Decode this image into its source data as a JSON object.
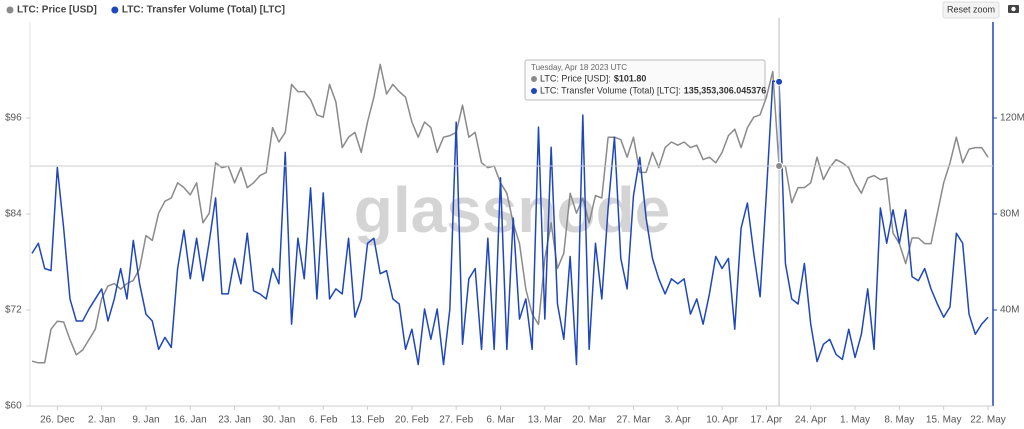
{
  "chart_data": {
    "type": "line",
    "watermark": "glassnode",
    "reset_button": "Reset zoom",
    "x": [
      "2022-12-22",
      "2022-12-23",
      "2022-12-24",
      "2022-12-25",
      "2022-12-26",
      "2022-12-27",
      "2022-12-28",
      "2022-12-29",
      "2022-12-30",
      "2022-12-31",
      "2023-01-01",
      "2023-01-02",
      "2023-01-03",
      "2023-01-04",
      "2023-01-05",
      "2023-01-06",
      "2023-01-07",
      "2023-01-08",
      "2023-01-09",
      "2023-01-10",
      "2023-01-11",
      "2023-01-12",
      "2023-01-13",
      "2023-01-14",
      "2023-01-15",
      "2023-01-16",
      "2023-01-17",
      "2023-01-18",
      "2023-01-19",
      "2023-01-20",
      "2023-01-21",
      "2023-01-22",
      "2023-01-23",
      "2023-01-24",
      "2023-01-25",
      "2023-01-26",
      "2023-01-27",
      "2023-01-28",
      "2023-01-29",
      "2023-01-30",
      "2023-01-31",
      "2023-02-01",
      "2023-02-02",
      "2023-02-03",
      "2023-02-04",
      "2023-02-05",
      "2023-02-06",
      "2023-02-07",
      "2023-02-08",
      "2023-02-09",
      "2023-02-10",
      "2023-02-11",
      "2023-02-12",
      "2023-02-13",
      "2023-02-14",
      "2023-02-15",
      "2023-02-16",
      "2023-02-17",
      "2023-02-18",
      "2023-02-19",
      "2023-02-20",
      "2023-02-21",
      "2023-02-22",
      "2023-02-23",
      "2023-02-24",
      "2023-02-25",
      "2023-02-26",
      "2023-02-27",
      "2023-02-28",
      "2023-03-01",
      "2023-03-02",
      "2023-03-03",
      "2023-03-04",
      "2023-03-05",
      "2023-03-06",
      "2023-03-07",
      "2023-03-08",
      "2023-03-09",
      "2023-03-10",
      "2023-03-11",
      "2023-03-12",
      "2023-03-13",
      "2023-03-14",
      "2023-03-15",
      "2023-03-16",
      "2023-03-17",
      "2023-03-18",
      "2023-03-19",
      "2023-03-20",
      "2023-03-21",
      "2023-03-22",
      "2023-03-23",
      "2023-03-24",
      "2023-03-25",
      "2023-03-26",
      "2023-03-27",
      "2023-03-28",
      "2023-03-29",
      "2023-03-30",
      "2023-03-31",
      "2023-04-01",
      "2023-04-02",
      "2023-04-03",
      "2023-04-04",
      "2023-04-05",
      "2023-04-06",
      "2023-04-07",
      "2023-04-08",
      "2023-04-09",
      "2023-04-10",
      "2023-04-11",
      "2023-04-12",
      "2023-04-13",
      "2023-04-14",
      "2023-04-15",
      "2023-04-16",
      "2023-04-17",
      "2023-04-18",
      "2023-04-19",
      "2023-04-20",
      "2023-04-21",
      "2023-04-22",
      "2023-04-23",
      "2023-04-24",
      "2023-04-25",
      "2023-04-26",
      "2023-04-27",
      "2023-04-28",
      "2023-04-29",
      "2023-04-30",
      "2023-05-01",
      "2023-05-02",
      "2023-05-03",
      "2023-05-04",
      "2023-05-05",
      "2023-05-06",
      "2023-05-07",
      "2023-05-08",
      "2023-05-09",
      "2023-05-10",
      "2023-05-11",
      "2023-05-12",
      "2023-05-13",
      "2023-05-14",
      "2023-05-15",
      "2023-05-16",
      "2023-05-17",
      "2023-05-18",
      "2023-05-19",
      "2023-05-20",
      "2023-05-21",
      "2023-05-22"
    ],
    "series": [
      {
        "name": "LTC: Price [USD]",
        "color": "#8a8a8a",
        "values": [
          65.6,
          65.4,
          65.4,
          69.6,
          70.6,
          70.5,
          68.3,
          66.4,
          67,
          68.3,
          69.6,
          73.4,
          75,
          75.3,
          74.6,
          75.3,
          75.7,
          77.2,
          81.3,
          80.7,
          84.1,
          85.6,
          86,
          87.9,
          87.3,
          86.4,
          87.9,
          82.9,
          84.1,
          90.4,
          89.8,
          90,
          87.9,
          89.8,
          87.3,
          87.9,
          88.8,
          89.2,
          94.8,
          93,
          94.2,
          100.2,
          99.3,
          99.3,
          98.3,
          96.4,
          96.1,
          100.2,
          98,
          92.3,
          93.6,
          94.2,
          91.7,
          95.5,
          98.6,
          102.7,
          99,
          100.2,
          99.3,
          98.6,
          95.5,
          93.6,
          95.5,
          94.8,
          91.7,
          93.6,
          93.8,
          94.2,
          97.6,
          93.6,
          94.2,
          90.4,
          89.8,
          90,
          87.9,
          86.6,
          82.9,
          80.3,
          74.6,
          71.5,
          70.2,
          78.4,
          82.9,
          77.2,
          79.1,
          86.6,
          84.1,
          86,
          82.9,
          86.3,
          86,
          93.6,
          93.6,
          93.3,
          91.1,
          93.6,
          89.2,
          89.2,
          91.7,
          89.8,
          92.3,
          93,
          92.6,
          93,
          92.3,
          92.6,
          90.8,
          91.1,
          90.4,
          91.7,
          93.8,
          94.6,
          92.3,
          94.8,
          96.1,
          96.4,
          98.6,
          101.8,
          90,
          90,
          85.4,
          87.3,
          87.3,
          87.9,
          91.1,
          88.3,
          89.8,
          90.8,
          90.4,
          89.8,
          87.9,
          86.6,
          88.5,
          88.8,
          88.3,
          88.5,
          81.6,
          80.3,
          77.8,
          81,
          81,
          80.3,
          80.3,
          84.1,
          87.9,
          90.4,
          93.6,
          90.4,
          92.1,
          92.3,
          92.3,
          91.1
        ]
      },
      {
        "name": "LTC: Transfer Volume (Total) [LTC]",
        "color": "#1f47bd",
        "axis": "y2",
        "values": [
          63.6,
          67.8,
          57.3,
          56.4,
          99.4,
          74.1,
          44.6,
          35.4,
          35.4,
          40.4,
          44.6,
          48.8,
          35.4,
          44.6,
          57.3,
          44.6,
          69.0,
          50.9,
          38.3,
          35.4,
          23.6,
          28.6,
          24.4,
          57.3,
          73.3,
          53.0,
          69.9,
          52.2,
          68.6,
          86.7,
          46.7,
          46.7,
          61.5,
          50.9,
          72.0,
          48.0,
          46.7,
          44.6,
          57.3,
          50.9,
          105.7,
          34.1,
          69.9,
          53.0,
          90.9,
          44.6,
          88.8,
          44.6,
          48.8,
          46.7,
          69.9,
          37.0,
          44.6,
          67.8,
          69.9,
          55.1,
          56.4,
          44.6,
          42.5,
          23.6,
          32.0,
          17.3,
          40.4,
          27.8,
          40.4,
          17.3,
          40.4,
          118.3,
          25.7,
          53.0,
          57.3,
          23.6,
          69.9,
          23.6,
          95.1,
          23.6,
          78.3,
          36.2,
          44.6,
          23.6,
          116.2,
          36.2,
          107.8,
          42.5,
          27.8,
          62.3,
          17.3,
          121.2,
          23.6,
          67.8,
          44.6,
          82.5,
          112.0,
          61.5,
          48.8,
          87.6,
          103.6,
          78.3,
          61.5,
          53.0,
          46.7,
          53.0,
          50.9,
          53.0,
          38.3,
          44.6,
          34.1,
          46.7,
          62.3,
          57.3,
          61.5,
          32.0,
          74.1,
          84.6,
          63.6,
          45.5,
          88.8,
          135.353306045376,
          135.1,
          59.4,
          44.6,
          42.5,
          59.4,
          34.1,
          18.5,
          25.7,
          27.8,
          21.5,
          19.4,
          32.0,
          20.2,
          29.9,
          48.8,
          23.6,
          82.5,
          67.8,
          81.7,
          67.8,
          81.7,
          53.9,
          52.2,
          57.3,
          48.8,
          42.5,
          37.0,
          41.3,
          72.0,
          67.8,
          38.3,
          29.9,
          34.1,
          37.0
        ]
      }
    ],
    "xlim": [
      "2022-12-22",
      "2023-05-22"
    ],
    "xticks": [
      {
        "value": "2022-12-26",
        "label": "26. Dec"
      },
      {
        "value": "2023-01-02",
        "label": "2. Jan"
      },
      {
        "value": "2023-01-09",
        "label": "9. Jan"
      },
      {
        "value": "2023-01-16",
        "label": "16. Jan"
      },
      {
        "value": "2023-01-23",
        "label": "23. Jan"
      },
      {
        "value": "2023-01-30",
        "label": "30. Jan"
      },
      {
        "value": "2023-02-06",
        "label": "6. Feb"
      },
      {
        "value": "2023-02-13",
        "label": "13. Feb"
      },
      {
        "value": "2023-02-20",
        "label": "20. Feb"
      },
      {
        "value": "2023-02-27",
        "label": "27. Feb"
      },
      {
        "value": "2023-03-06",
        "label": "6. Mar"
      },
      {
        "value": "2023-03-13",
        "label": "13. Mar"
      },
      {
        "value": "2023-03-20",
        "label": "20. Mar"
      },
      {
        "value": "2023-03-27",
        "label": "27. Mar"
      },
      {
        "value": "2023-04-03",
        "label": "3. Apr"
      },
      {
        "value": "2023-04-10",
        "label": "10. Apr"
      },
      {
        "value": "2023-04-17",
        "label": "17. Apr"
      },
      {
        "value": "2023-04-24",
        "label": "24. Apr"
      },
      {
        "value": "2023-05-01",
        "label": "1. May"
      },
      {
        "value": "2023-05-08",
        "label": "8. May"
      },
      {
        "value": "2023-05-15",
        "label": "15. May"
      },
      {
        "value": "2023-05-22",
        "label": "22. May"
      }
    ],
    "ylim": [
      60,
      108.5
    ],
    "yticks": [
      {
        "value": 60,
        "label": "$60"
      },
      {
        "value": 72,
        "label": "$72"
      },
      {
        "value": 84,
        "label": "$84"
      },
      {
        "value": 96,
        "label": "$96"
      }
    ],
    "y2lim": [
      0,
      161.67
    ],
    "y2ticks": [
      {
        "value": 40,
        "label": "40M"
      },
      {
        "value": 80,
        "label": "80M"
      },
      {
        "value": 120,
        "label": "120M"
      }
    ],
    "tooltip": {
      "title": "Tuesday, Apr 18 2023 UTC",
      "rows": [
        {
          "label": "LTC: Price [USD]:",
          "value_label": "$101.80"
        },
        {
          "label": "LTC: Transfer Volume (Total) [LTC]:",
          "value_label": "135,353,306.045376"
        }
      ]
    }
  }
}
